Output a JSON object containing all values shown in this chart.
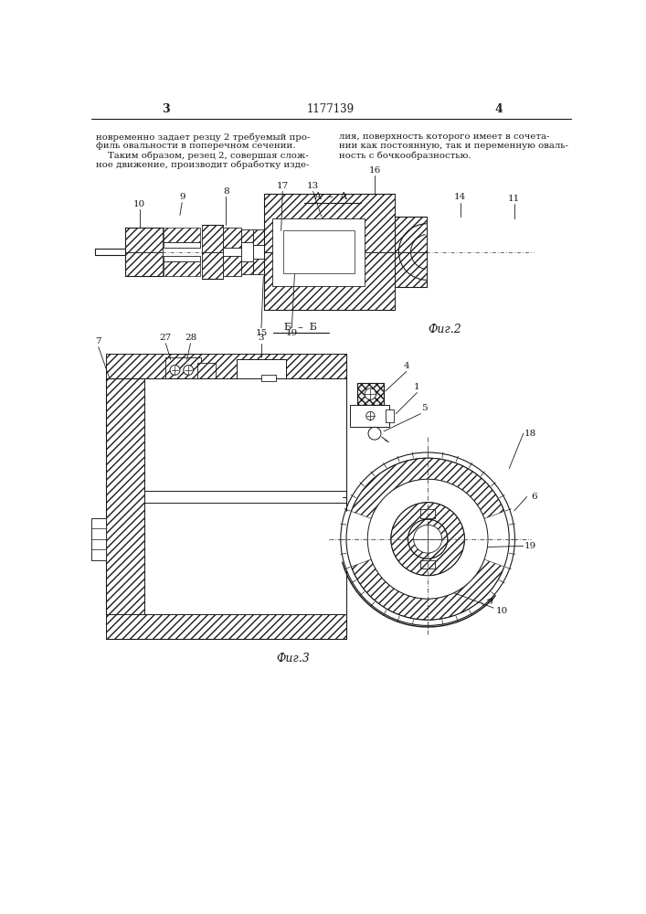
{
  "page_number_left": "3",
  "page_number_right": "4",
  "patent_number": "1177139",
  "text_left_line1": "новременно задает резцу 2 требуемый про-",
  "text_left_line2": "филь овальности в поперечном сечении.",
  "text_left_line3": "    Таким образом, резец 2, совершая слож-",
  "text_left_line4": "ное движение, производит обработку изде-",
  "text_right_line1": "лия, поверхность которого имеет в сочета-",
  "text_right_line2": "нии как постоянную, так и переменную оваль-",
  "text_right_line3": "ность с бочкообразностью.",
  "fig2_label": "Фиг.2",
  "fig3_label": "Фиг.3",
  "background_color": "#ffffff",
  "line_color": "#1a1a1a"
}
